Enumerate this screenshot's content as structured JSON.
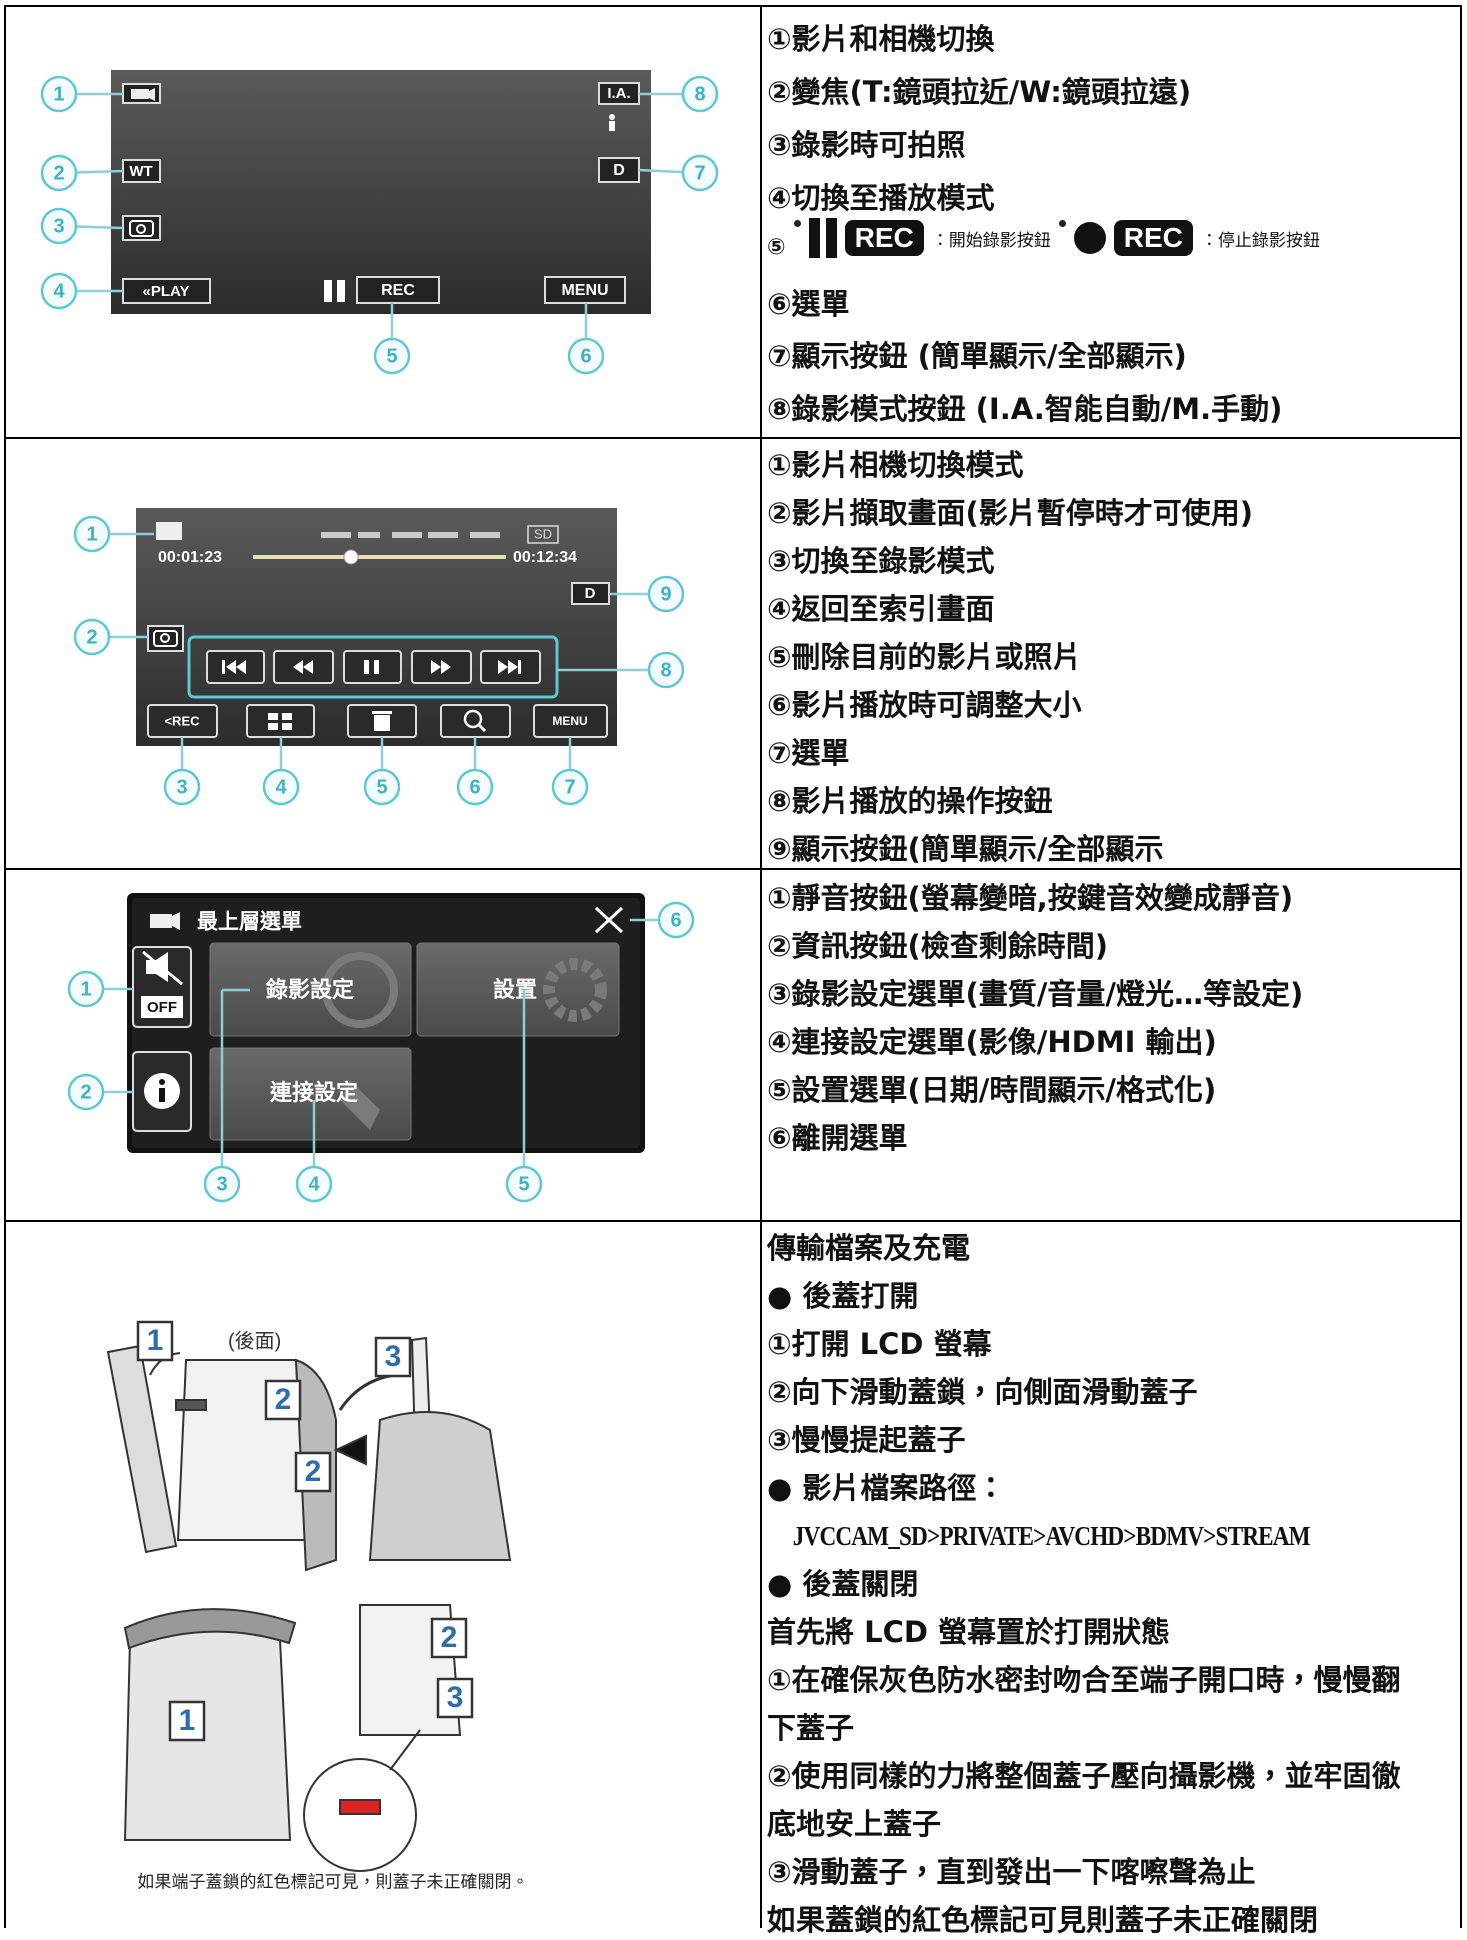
{
  "sections": [
    {
      "panel": {
        "callouts": [
          "1",
          "2",
          "3",
          "4",
          "5",
          "6",
          "7",
          "8"
        ],
        "labels": {
          "wt": "WT",
          "play": "«PLAY",
          "rec": "REC",
          "menu": "MENU",
          "ia": "I.A.",
          "display": "D"
        }
      },
      "items": [
        "①影片和相機切換",
        "②變焦(T:鏡頭拉近/W:鏡頭拉遠)",
        "③錄影時可拍照",
        "④切換至播放模式",
        {
          "marker": "⑤",
          "start_badge": "REC",
          "start_text": "：開始錄影按鈕",
          "stop_badge": "REC",
          "stop_text": "：停止錄影按鈕"
        },
        "⑥選單",
        "⑦顯示按鈕 (簡單顯示/全部顯示)",
        "⑧錄影模式按鈕 (I.A.智能自動/M.手動)"
      ]
    },
    {
      "panel": {
        "callouts": [
          "1",
          "2",
          "3",
          "4",
          "5",
          "6",
          "7",
          "8",
          "9"
        ],
        "labels": {
          "elapsed": "00:01:23",
          "total": "00:12:34",
          "media": "SD",
          "display": "D",
          "rec": "<REC",
          "menu": "MENU"
        }
      },
      "items": [
        "①影片相機切換模式",
        "②影片擷取畫面(影片暫停時才可使用)",
        "③切換至錄影模式",
        "④返回至索引畫面",
        "⑤刪除目前的影片或照片",
        "⑥影片播放時可調整大小",
        "⑦選單",
        "⑧影片播放的操作按鈕",
        "⑨顯示按鈕(簡單顯示/全部顯示"
      ]
    },
    {
      "panel": {
        "callouts": [
          "1",
          "2",
          "3",
          "4",
          "5",
          "6"
        ],
        "labels": {
          "title": "最上層選單",
          "record_settings": "錄影設定",
          "setup": "設置",
          "connection_settings": "連接設定",
          "mute_off": "OFF"
        }
      },
      "items": [
        "①靜音按鈕(螢幕變暗,按鍵音效變成靜音)",
        "②資訊按鈕(檢查剩餘時間)",
        "③錄影設定選單(畫質/音量/燈光…等設定)",
        "④連接設定選單(影像/HDMI 輸出)",
        "⑤設置選單(日期/時間顯示/格式化)",
        "⑥離開選單"
      ]
    },
    {
      "panel": {
        "steps_open": [
          "1",
          "2",
          "2",
          "3"
        ],
        "rear_label": "(後面)",
        "steps_close": [
          "1",
          "2",
          "3"
        ],
        "caption": "如果端子蓋鎖的紅色標記可見，則蓋子未正確關閉。"
      },
      "items": [
        "傳輸檔案及充電",
        "● 後蓋打開",
        "①打開 LCD 螢幕",
        "②向下滑動蓋鎖，向側面滑動蓋子",
        "③慢慢提起蓋子",
        "● 影片檔案路徑：",
        "JVCCAM_SD>PRIVATE>AVCHD>BDMV>STREAM",
        "● 後蓋關閉",
        "首先將 LCD 螢幕置於打開狀態",
        "①在確保灰色防水密封吻合至端子開口時，慢慢翻",
        "下蓋子",
        "②使用同樣的力將整個蓋子壓向攝影機，並牢固徹",
        "底地安上蓋子",
        "③滑動蓋子，直到發出一下喀嚓聲為止",
        "如果蓋鎖的紅色標記可見則蓋子未正確關閉"
      ]
    }
  ]
}
